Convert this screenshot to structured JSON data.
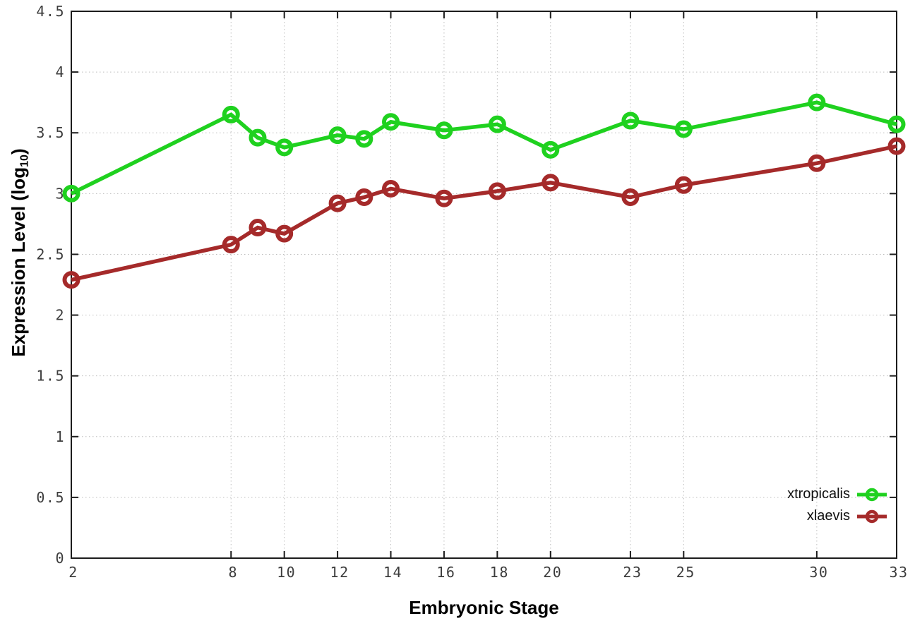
{
  "axes": {
    "x_title": "Embryonic Stage",
    "y_title_prefix": "Expression Level (log",
    "y_title_sub": "10",
    "y_title_suffix": ")"
  },
  "chart_data": {
    "type": "line",
    "title": "",
    "xlabel": "Embryonic Stage",
    "ylabel": "Expression Level (log10)",
    "x": [
      2,
      8,
      9,
      10,
      12,
      13,
      14,
      16,
      18,
      20,
      23,
      25,
      30,
      33
    ],
    "series": [
      {
        "name": "xtropicalis",
        "color": "#1fd11f",
        "marker": "open-circle",
        "values": [
          3.0,
          3.65,
          3.46,
          3.38,
          3.48,
          3.45,
          3.59,
          3.52,
          3.57,
          3.36,
          3.6,
          3.53,
          3.75,
          3.57
        ]
      },
      {
        "name": "xlaevis",
        "color": "#a52a2a",
        "marker": "open-circle",
        "values": [
          2.29,
          2.58,
          2.72,
          2.67,
          2.92,
          2.97,
          3.04,
          2.96,
          3.02,
          3.09,
          2.97,
          3.07,
          3.25,
          3.39
        ]
      }
    ],
    "xlim": [
      2,
      33
    ],
    "ylim": [
      0,
      4.5
    ],
    "xticks": [
      2,
      8,
      10,
      12,
      14,
      16,
      18,
      20,
      23,
      25,
      30,
      33
    ],
    "xtick_labels": [
      "2",
      "8",
      "10",
      "12",
      "14",
      "16",
      "18",
      "20",
      "23",
      "25",
      "30",
      "33"
    ],
    "yticks": [
      0,
      0.5,
      1,
      1.5,
      2,
      2.5,
      3,
      3.5,
      4,
      4.5
    ],
    "ytick_labels": [
      "0",
      "0.5",
      "1",
      "1.5",
      "2",
      "2.5",
      "3",
      "3.5",
      "4",
      "4.5"
    ],
    "grid": true,
    "legend_position": "inside bottom-right"
  },
  "colors": {
    "grid": "#bdbdbd",
    "axis": "#1c1c1c",
    "tick_text": "#3c3c3c"
  }
}
